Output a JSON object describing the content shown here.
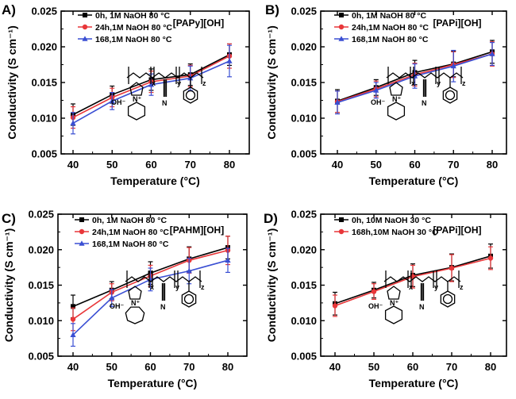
{
  "chart_data": [
    {
      "type": "line",
      "panel": "A)",
      "polymer_label": "[PAPy][OH]",
      "xlabel": "Temperature (°C)",
      "ylabel": "Conductivity (S cm⁻¹)",
      "ylim": [
        0.005,
        0.025
      ],
      "xticks": [
        "40",
        "50",
        "60",
        "70",
        "80"
      ],
      "yticks": [
        "0.005",
        "0.010",
        "0.015",
        "0.020",
        "0.025"
      ],
      "x": [
        40,
        50,
        60,
        70,
        80
      ],
      "series": [
        {
          "name": "0h,  1M NaOH 80 °C",
          "color": "#000000",
          "marker": "square",
          "values": [
            0.0105,
            0.0133,
            0.0154,
            0.0161,
            0.0189
          ],
          "errors": [
            0.0015,
            0.0012,
            0.0015,
            0.0015,
            0.0015
          ]
        },
        {
          "name": "24h,1M NaOH 80 °C",
          "color": "#e8373a",
          "marker": "circle",
          "values": [
            0.0101,
            0.0129,
            0.0151,
            0.0159,
            0.0187
          ],
          "errors": [
            0.0015,
            0.0013,
            0.0015,
            0.0015,
            0.0017
          ]
        },
        {
          "name": "168,1M NaOH 80 °C",
          "color": "#3a4fd3",
          "marker": "triangle",
          "values": [
            0.0093,
            0.0124,
            0.0147,
            0.0156,
            0.018
          ],
          "errors": [
            0.0015,
            0.0012,
            0.0015,
            0.0017,
            0.0022
          ]
        }
      ],
      "chem": {
        "counterion": "OH⁻",
        "cation": "N⁺",
        "nitrile": "N",
        "x": "x",
        "y": "y",
        "z": "z"
      }
    },
    {
      "type": "line",
      "panel": "B)",
      "polymer_label": "[PAPi][OH]",
      "xlabel": "Temperature (°C)",
      "ylabel": "Conductivity (S cm⁻¹)",
      "ylim": [
        0.005,
        0.025
      ],
      "xticks": [
        "40",
        "50",
        "60",
        "70",
        "80"
      ],
      "yticks": [
        "0.005",
        "0.010",
        "0.015",
        "0.020",
        "0.025"
      ],
      "x": [
        40,
        50,
        60,
        70,
        80
      ],
      "series": [
        {
          "name": "0h,  1M NaOH 80 °C",
          "color": "#000000",
          "marker": "square",
          "values": [
            0.0124,
            0.0143,
            0.0164,
            0.0176,
            0.0193
          ],
          "errors": [
            0.0016,
            0.0011,
            0.0017,
            0.0018,
            0.0016
          ]
        },
        {
          "name": "24h,1M NaOH 80 °C",
          "color": "#e8373a",
          "marker": "circle",
          "values": [
            0.0123,
            0.0141,
            0.0161,
            0.0175,
            0.019
          ],
          "errors": [
            0.0015,
            0.0011,
            0.0016,
            0.0018,
            0.0017
          ]
        },
        {
          "name": "168,1M NaOH 80 °C",
          "color": "#3a4fd3",
          "marker": "triangle",
          "values": [
            0.0122,
            0.0139,
            0.0159,
            0.0173,
            0.019
          ],
          "errors": [
            0.0016,
            0.0011,
            0.0017,
            0.0022,
            0.0016
          ]
        }
      ],
      "chem": {
        "counterion": "OH⁻",
        "cation": "N⁺",
        "nitrile": "N",
        "x": "x",
        "y": "y",
        "z": "z"
      }
    },
    {
      "type": "line",
      "panel": "C)",
      "polymer_label": "[PAHM][OH]",
      "xlabel": "Temperature (°C)",
      "ylabel": "Conductivity (S cm⁻¹)",
      "ylim": [
        0.005,
        0.025
      ],
      "xticks": [
        "40",
        "50",
        "60",
        "70",
        "80"
      ],
      "yticks": [
        "0.005",
        "0.010",
        "0.015",
        "0.020",
        "0.025"
      ],
      "x": [
        40,
        50,
        60,
        70,
        80
      ],
      "series": [
        {
          "name": "0h,  1M NaOH 80 °C",
          "color": "#000000",
          "marker": "square",
          "values": [
            0.012,
            0.0143,
            0.0167,
            0.0187,
            0.0203
          ],
          "errors": [
            0.0016,
            0.0012,
            0.0016,
            0.0017,
            0.0016
          ]
        },
        {
          "name": "24h,1M NaOH 80 °C",
          "color": "#e8373a",
          "marker": "circle",
          "values": [
            0.0102,
            0.014,
            0.0163,
            0.0185,
            0.0199
          ],
          "errors": [
            0.0016,
            0.0012,
            0.0015,
            0.0018,
            0.002
          ]
        },
        {
          "name": "168,1M NaOH 80 °C",
          "color": "#3a4fd3",
          "marker": "triangle",
          "values": [
            0.008,
            0.0132,
            0.0158,
            0.017,
            0.0185
          ],
          "errors": [
            0.0016,
            0.0012,
            0.0016,
            0.0018,
            0.0017
          ]
        }
      ],
      "chem": {
        "counterion": "OH⁻",
        "cation": "N⁺",
        "nitrile": "N",
        "x": "x",
        "y": "y",
        "z": "z"
      }
    },
    {
      "type": "line",
      "panel": "D)",
      "polymer_label": "[PAPi][OH]",
      "xlabel": "Temperature (°C)",
      "ylabel": "Conductivity (S cm⁻¹)",
      "ylim": [
        0.005,
        0.025
      ],
      "xticks": [
        "40",
        "50",
        "60",
        "70",
        "80"
      ],
      "yticks": [
        "0.005",
        "0.010",
        "0.015",
        "0.020",
        "0.025"
      ],
      "x": [
        40,
        50,
        60,
        70,
        80
      ],
      "series": [
        {
          "name": "0h,    10M NaOH 30 °C",
          "color": "#000000",
          "marker": "square",
          "values": [
            0.0124,
            0.0143,
            0.0164,
            0.0175,
            0.0191
          ],
          "errors": [
            0.0016,
            0.0011,
            0.0016,
            0.0019,
            0.0017
          ]
        },
        {
          "name": "168h,10M NaOH 30 °C",
          "color": "#e8373a",
          "marker": "circle",
          "values": [
            0.0121,
            0.0141,
            0.0162,
            0.0174,
            0.0188
          ],
          "errors": [
            0.0015,
            0.0011,
            0.0016,
            0.0019,
            0.0016
          ]
        }
      ],
      "chem": {
        "counterion": "OH⁻",
        "cation": "N⁺",
        "nitrile": "N",
        "x": "x",
        "y": "y",
        "z": "z"
      }
    }
  ]
}
